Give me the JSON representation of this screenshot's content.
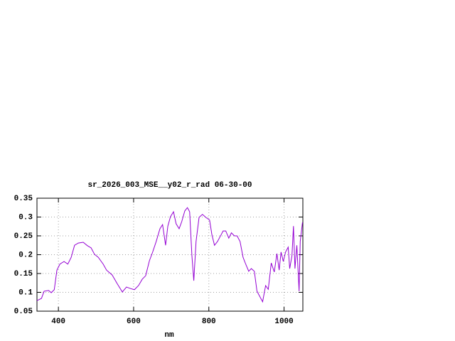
{
  "chart_data": {
    "type": "line",
    "title": "sr_2026_003_MSE__y02_r_rad 06-30-00",
    "x_label": "nm",
    "xlim": [
      343,
      1050
    ],
    "ylim": [
      0.05,
      0.35
    ],
    "xticks": [
      400,
      600,
      800,
      1000
    ],
    "yticks": [
      0.05,
      0.1,
      0.15,
      0.2,
      0.25,
      0.3,
      0.35
    ],
    "grid": true,
    "series": [
      {
        "color": "#9400d3",
        "x": [
          343,
          355,
          362,
          374,
          381,
          389,
          396,
          404,
          415,
          425,
          434,
          443,
          453,
          466,
          477,
          487,
          496,
          506,
          519,
          528,
          543,
          557,
          570,
          581,
          592,
          602,
          613,
          623,
          632,
          642,
          651,
          660,
          670,
          677,
          685,
          691,
          698,
          706,
          713,
          721,
          728,
          736,
          743,
          749,
          755,
          760,
          766,
          774,
          783,
          792,
          802,
          808,
          815,
          823,
          830,
          838,
          845,
          853,
          860,
          868,
          875,
          883,
          891,
          898,
          906,
          913,
          921,
          928,
          936,
          943,
          951,
          958,
          966,
          974,
          981,
          987,
          992,
          998,
          1004,
          1011,
          1015,
          1021,
          1025,
          1029,
          1034,
          1040,
          1043,
          1049
        ],
        "values": [
          0.078,
          0.084,
          0.103,
          0.105,
          0.099,
          0.107,
          0.159,
          0.175,
          0.182,
          0.175,
          0.193,
          0.225,
          0.231,
          0.233,
          0.224,
          0.218,
          0.201,
          0.193,
          0.175,
          0.159,
          0.146,
          0.122,
          0.101,
          0.114,
          0.11,
          0.107,
          0.118,
          0.135,
          0.144,
          0.184,
          0.208,
          0.235,
          0.269,
          0.28,
          0.225,
          0.276,
          0.301,
          0.314,
          0.282,
          0.269,
          0.288,
          0.316,
          0.325,
          0.314,
          0.197,
          0.131,
          0.235,
          0.299,
          0.307,
          0.299,
          0.292,
          0.254,
          0.225,
          0.235,
          0.248,
          0.263,
          0.263,
          0.244,
          0.258,
          0.25,
          0.25,
          0.235,
          0.193,
          0.175,
          0.156,
          0.163,
          0.156,
          0.103,
          0.088,
          0.075,
          0.118,
          0.108,
          0.178,
          0.154,
          0.203,
          0.159,
          0.207,
          0.182,
          0.207,
          0.22,
          0.163,
          0.197,
          0.276,
          0.163,
          0.225,
          0.103,
          0.235,
          0.286
        ]
      }
    ]
  }
}
